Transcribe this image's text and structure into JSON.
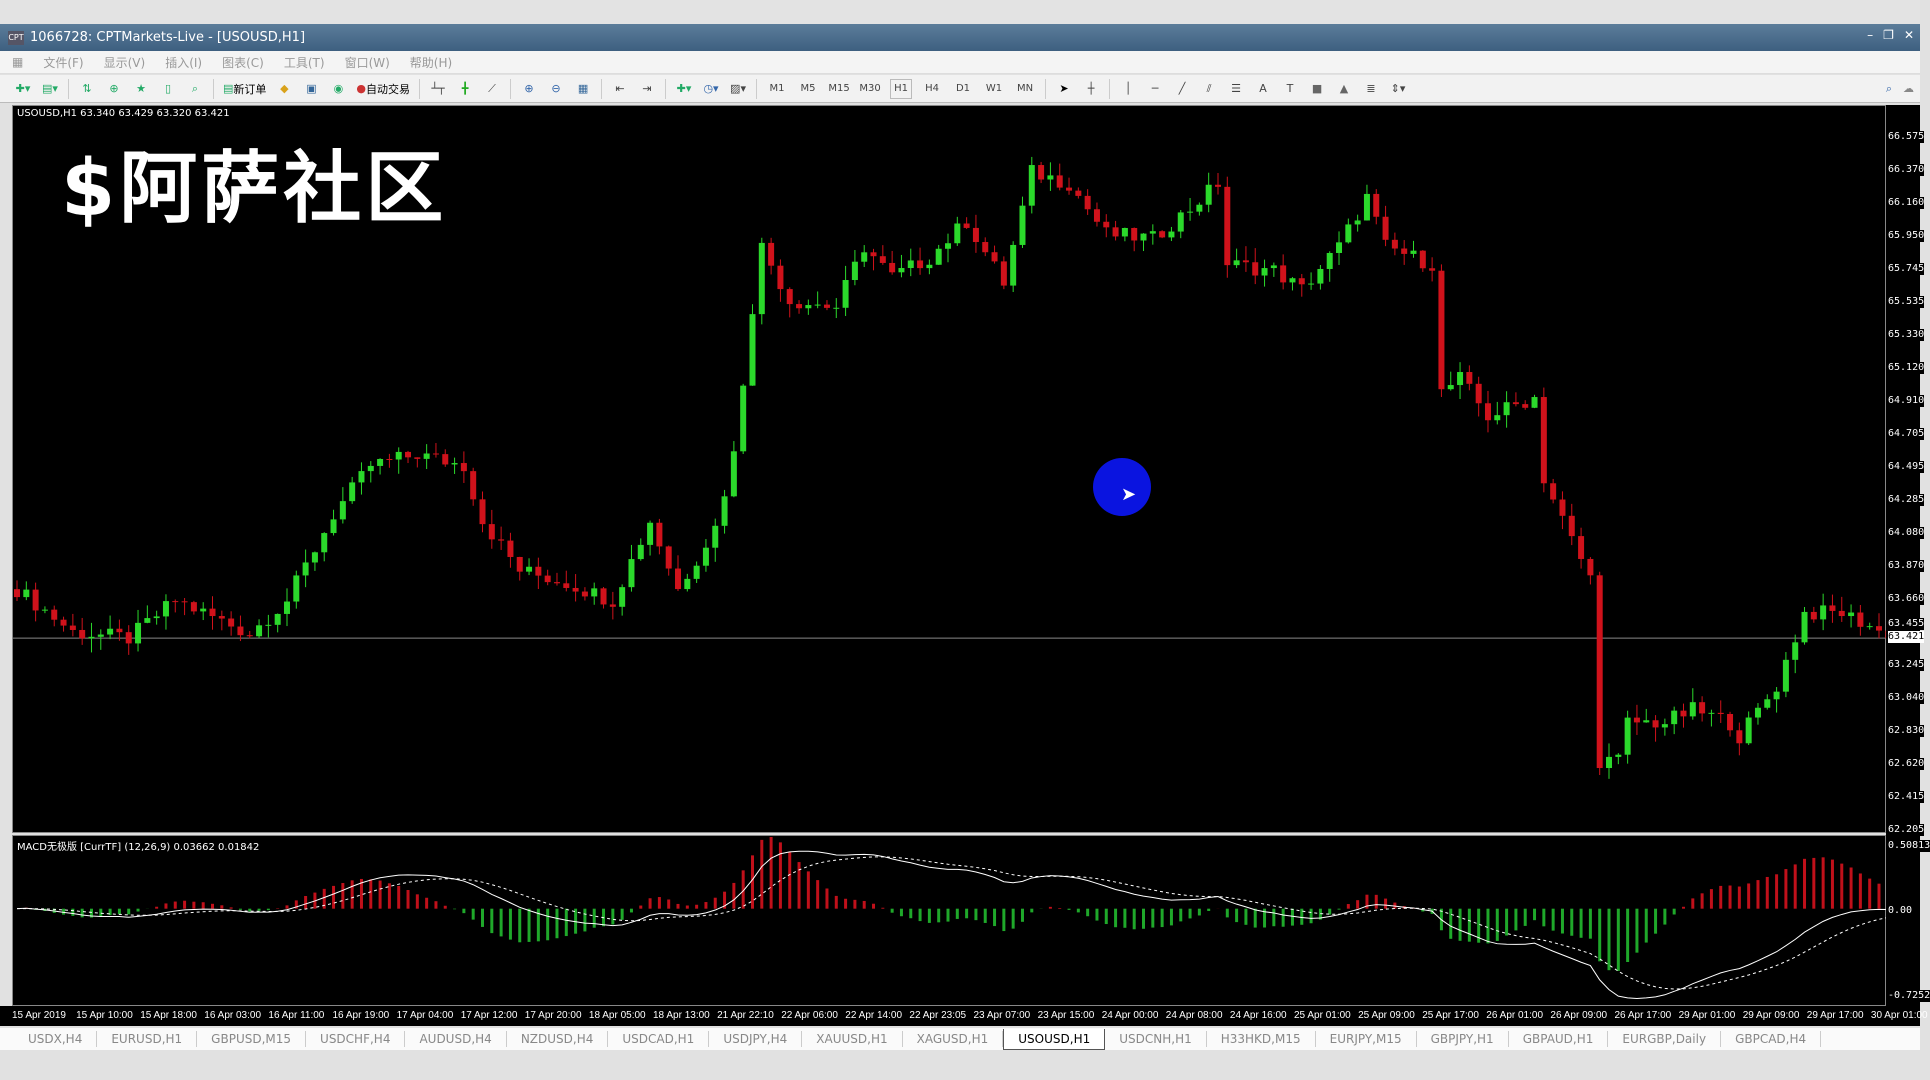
{
  "window": {
    "title": "1066728: CPTMarkets-Live - [USOUSD,H1]",
    "app_icon": "CPT",
    "controls": [
      "–",
      "❐",
      "✕"
    ]
  },
  "menu": [
    "文件(F)",
    "显示(V)",
    "插入(I)",
    "图表(C)",
    "工具(T)",
    "窗口(W)",
    "帮助(H)"
  ],
  "toolbar": {
    "new_order": "新订单",
    "auto_trading": "自动交易",
    "timeframes": [
      "M1",
      "M5",
      "M15",
      "M30",
      "H1",
      "H4",
      "D1",
      "W1",
      "MN"
    ],
    "active_timeframe": "H1"
  },
  "chart": {
    "info": "USOUSD,H1  63.340 63.429 63.320 63.421",
    "logo": "$阿萨社区",
    "current_price": "63.421",
    "bull_color": "#2bd92b",
    "bear_color": "#d0121b"
  },
  "macd": {
    "info": "MACD无极版 [CurrTF] (12,26,9) 0.03662 0.01842",
    "max": "0.50813",
    "zero": "0.00",
    "min": "-0.7252"
  },
  "chart_data": {
    "type": "candlestick",
    "symbol": "USOUSD",
    "timeframe": "H1",
    "y_ticks": [
      "66.575",
      "66.370",
      "66.160",
      "65.950",
      "65.745",
      "65.535",
      "65.330",
      "65.120",
      "64.910",
      "64.705",
      "64.495",
      "64.285",
      "64.080",
      "63.870",
      "63.660",
      "63.455",
      "63.245",
      "63.040",
      "62.830",
      "62.620",
      "62.415",
      "62.205"
    ],
    "ylim": [
      62.205,
      66.575
    ],
    "close_points": [
      [
        0,
        63.73
      ],
      [
        6,
        63.46
      ],
      [
        12,
        63.42
      ],
      [
        17,
        63.66
      ],
      [
        25,
        63.45
      ],
      [
        29,
        63.66
      ],
      [
        34,
        64.2
      ],
      [
        38,
        64.51
      ],
      [
        43,
        64.58
      ],
      [
        48,
        64.51
      ],
      [
        50,
        64.16
      ],
      [
        54,
        63.85
      ],
      [
        59,
        63.77
      ],
      [
        64,
        63.66
      ],
      [
        68,
        64.16
      ],
      [
        71,
        63.73
      ],
      [
        75,
        64.12
      ],
      [
        77,
        64.58
      ],
      [
        79,
        65.51
      ],
      [
        80,
        65.89
      ],
      [
        83,
        65.55
      ],
      [
        88,
        65.51
      ],
      [
        91,
        65.89
      ],
      [
        94,
        65.7
      ],
      [
        98,
        65.82
      ],
      [
        102,
        66.05
      ],
      [
        106,
        65.66
      ],
      [
        109,
        66.36
      ],
      [
        113,
        66.29
      ],
      [
        117,
        65.97
      ],
      [
        122,
        65.94
      ],
      [
        126,
        66.13
      ],
      [
        129,
        66.29
      ],
      [
        130,
        65.78
      ],
      [
        135,
        65.74
      ],
      [
        138,
        65.62
      ],
      [
        142,
        65.89
      ],
      [
        145,
        66.2
      ],
      [
        147,
        65.89
      ],
      [
        152,
        65.78
      ],
      [
        153,
        64.97
      ],
      [
        155,
        65.06
      ],
      [
        158,
        64.82
      ],
      [
        163,
        64.94
      ],
      [
        164,
        64.43
      ],
      [
        167,
        64.04
      ],
      [
        169,
        63.8
      ],
      [
        170,
        62.65
      ],
      [
        172,
        62.65
      ],
      [
        173,
        62.89
      ],
      [
        177,
        62.89
      ],
      [
        180,
        62.97
      ],
      [
        184,
        62.89
      ],
      [
        185,
        62.8
      ],
      [
        189,
        63.12
      ],
      [
        192,
        63.58
      ],
      [
        196,
        63.58
      ],
      [
        199,
        63.5
      ],
      [
        201,
        63.421
      ]
    ],
    "x_ticks": [
      "15 Apr 2019",
      "15 Apr 10:00",
      "15 Apr 18:00",
      "16 Apr 03:00",
      "16 Apr 11:00",
      "16 Apr 19:00",
      "17 Apr 04:00",
      "17 Apr 12:00",
      "17 Apr 20:00",
      "18 Apr 05:00",
      "18 Apr 13:00",
      "21 Apr 22:10",
      "22 Apr 06:00",
      "22 Apr 14:00",
      "22 Apr 23:05",
      "23 Apr 07:00",
      "23 Apr 15:00",
      "24 Apr 00:00",
      "24 Apr 08:00",
      "24 Apr 16:00",
      "25 Apr 01:00",
      "25 Apr 09:00",
      "25 Apr 17:00",
      "26 Apr 01:00",
      "26 Apr 09:00",
      "26 Apr 17:00",
      "29 Apr 01:00",
      "29 Apr 09:00",
      "29 Apr 17:00",
      "30 Apr 01:00"
    ]
  },
  "tabs": [
    "USDX,H4",
    "EURUSD,H1",
    "GBPUSD,M15",
    "USDCHF,H4",
    "AUDUSD,H4",
    "NZDUSD,H4",
    "USDCAD,H1",
    "USDJPY,H4",
    "XAUUSD,H1",
    "XAGUSD,H1",
    "USOUSD,H1",
    "USDCNH,H1",
    "H33HKD,M15",
    "EURJPY,M15",
    "GBPJPY,H1",
    "GBPAUD,H1",
    "EURGBP,Daily",
    "GBPCAD,H4"
  ],
  "active_tab": "USOUSD,H1"
}
